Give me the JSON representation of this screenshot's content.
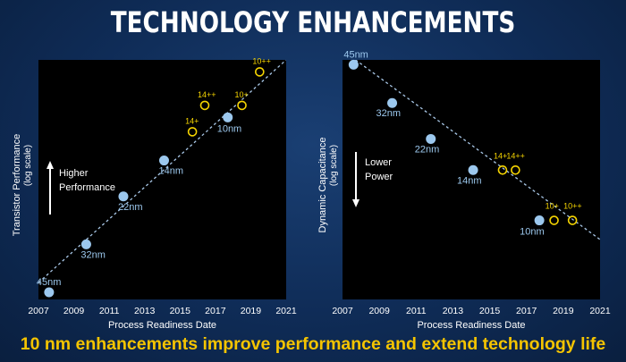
{
  "page": {
    "title": "TECHNOLOGY ENHANCEMENTS",
    "caption": "10 nm enhancements improve performance and extend technology life"
  },
  "colors": {
    "panel": "#000000",
    "dot_fill": "#9cc8ee",
    "label_blue": "#9cc8ee",
    "enhance_yellow": "#f5d400",
    "trend_line": "#a9c8e8",
    "axis_text": "#ffffff",
    "caption": "#f5c400"
  },
  "chart_data": [
    {
      "type": "scatter",
      "xlabel": "Process Readiness Date",
      "ylabel": "Transistor Performance",
      "ylabel_sub": "(log scale)",
      "xlim": [
        2007,
        2021
      ],
      "xticks": [
        "2007",
        "2009",
        "2011",
        "2013",
        "2015",
        "2017",
        "2019",
        "2021"
      ],
      "ylim": [
        0,
        100
      ],
      "annotation": {
        "line1": "Higher",
        "line2": "Performance",
        "arrow": "up"
      },
      "nodes": [
        {
          "label": "45nm",
          "x": 2007.6,
          "y": 3
        },
        {
          "label": "32nm",
          "x": 2009.7,
          "y": 23
        },
        {
          "label": "22nm",
          "x": 2011.8,
          "y": 43
        },
        {
          "label": "14nm",
          "x": 2014.1,
          "y": 58
        },
        {
          "label": "10nm",
          "x": 2017.7,
          "y": 76
        }
      ],
      "enhancements": [
        {
          "label": "14+",
          "x": 2015.7,
          "y": 70
        },
        {
          "label": "14++",
          "x": 2016.4,
          "y": 81
        },
        {
          "label": "10+",
          "x": 2018.5,
          "y": 81
        },
        {
          "label": "10++",
          "x": 2019.5,
          "y": 95
        }
      ],
      "trend": {
        "x": [
          2007,
          2021
        ],
        "y": [
          7,
          100
        ]
      }
    },
    {
      "type": "scatter",
      "xlabel": "Process Readiness Date",
      "ylabel": "Dynamic Capacitance",
      "ylabel_sub": "(log scale)",
      "xlim": [
        2007,
        2021
      ],
      "xticks": [
        "2007",
        "2009",
        "2011",
        "2013",
        "2015",
        "2017",
        "2019",
        "2021"
      ],
      "ylim": [
        0,
        100
      ],
      "annotation": {
        "line1": "Lower",
        "line2": "Power",
        "arrow": "down"
      },
      "nodes": [
        {
          "label": "45nm",
          "x": 2007.6,
          "y": 98
        },
        {
          "label": "32nm",
          "x": 2009.7,
          "y": 82
        },
        {
          "label": "22nm",
          "x": 2011.8,
          "y": 67
        },
        {
          "label": "14nm",
          "x": 2014.1,
          "y": 54
        },
        {
          "label": "10nm",
          "x": 2017.7,
          "y": 33
        }
      ],
      "enhancements": [
        {
          "label": "14+",
          "x": 2015.7,
          "y": 54
        },
        {
          "label": "14++",
          "x": 2016.4,
          "y": 54
        },
        {
          "label": "10+",
          "x": 2018.5,
          "y": 33
        },
        {
          "label": "10++",
          "x": 2019.5,
          "y": 33
        }
      ],
      "trend": {
        "x": [
          2007,
          2021
        ],
        "y": [
          104,
          25
        ]
      }
    }
  ]
}
